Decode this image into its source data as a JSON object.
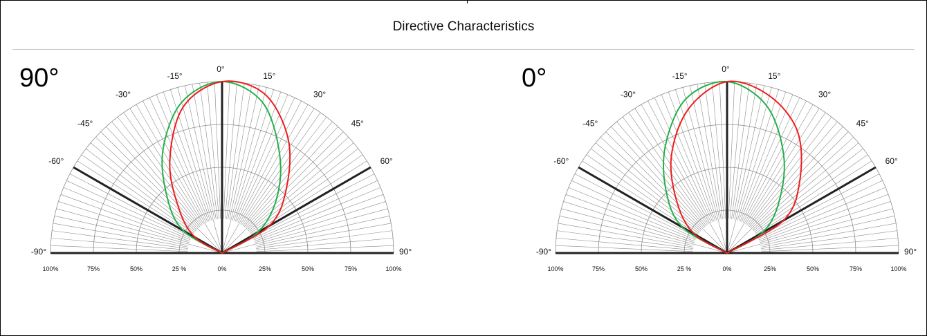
{
  "title": "Directive Characteristics",
  "colors": {
    "series_a": "#22b04a",
    "series_b": "#ee1c1c",
    "grid": "#8c8c8c",
    "axis": "#222222"
  },
  "angle_labels": [
    "-90°",
    "-60°",
    "-45°",
    "-30°",
    "-15°",
    "0°",
    "15°",
    "30°",
    "45°",
    "60°",
    "90°"
  ],
  "angle_values": [
    -90,
    -60,
    -45,
    -30,
    -15,
    0,
    15,
    30,
    45,
    60,
    90
  ],
  "percent_labels": [
    "100%",
    "75%",
    "50%",
    "25 %",
    "0%",
    "25%",
    "50%",
    "75%",
    "100%"
  ],
  "chart_data": [
    {
      "type": "polar",
      "panel_label": "90°",
      "angle_range": [
        -90,
        90
      ],
      "radial_range": [
        0,
        100
      ],
      "highlighted_angles": [
        -60,
        0,
        60
      ],
      "series": [
        {
          "color": "#22b04a",
          "angles": [
            -60,
            -45,
            -30,
            -15,
            0,
            15,
            30,
            45,
            60
          ],
          "values": [
            26,
            45,
            69,
            91,
            100,
            91,
            67,
            45,
            24
          ]
        },
        {
          "color": "#ee1c1c",
          "angles": [
            -60,
            -45,
            -30,
            -15,
            0,
            15,
            30,
            45,
            60
          ],
          "values": [
            18,
            35,
            61,
            88,
            100,
            96,
            77,
            53,
            32
          ]
        }
      ]
    },
    {
      "type": "polar",
      "panel_label": "0°",
      "angle_range": [
        -90,
        90
      ],
      "radial_range": [
        0,
        100
      ],
      "highlighted_angles": [
        -60,
        0,
        60
      ],
      "series": [
        {
          "color": "#22b04a",
          "angles": [
            -60,
            -45,
            -30,
            -15,
            0,
            15,
            30,
            45,
            60
          ],
          "values": [
            30,
            50,
            72,
            93,
            100,
            89,
            66,
            43,
            24
          ]
        },
        {
          "color": "#ee1c1c",
          "angles": [
            -60,
            -45,
            -30,
            -15,
            0,
            15,
            30,
            45,
            60
          ],
          "values": [
            22,
            41,
            65,
            87,
            100,
            95,
            82,
            60,
            38
          ]
        }
      ]
    }
  ]
}
